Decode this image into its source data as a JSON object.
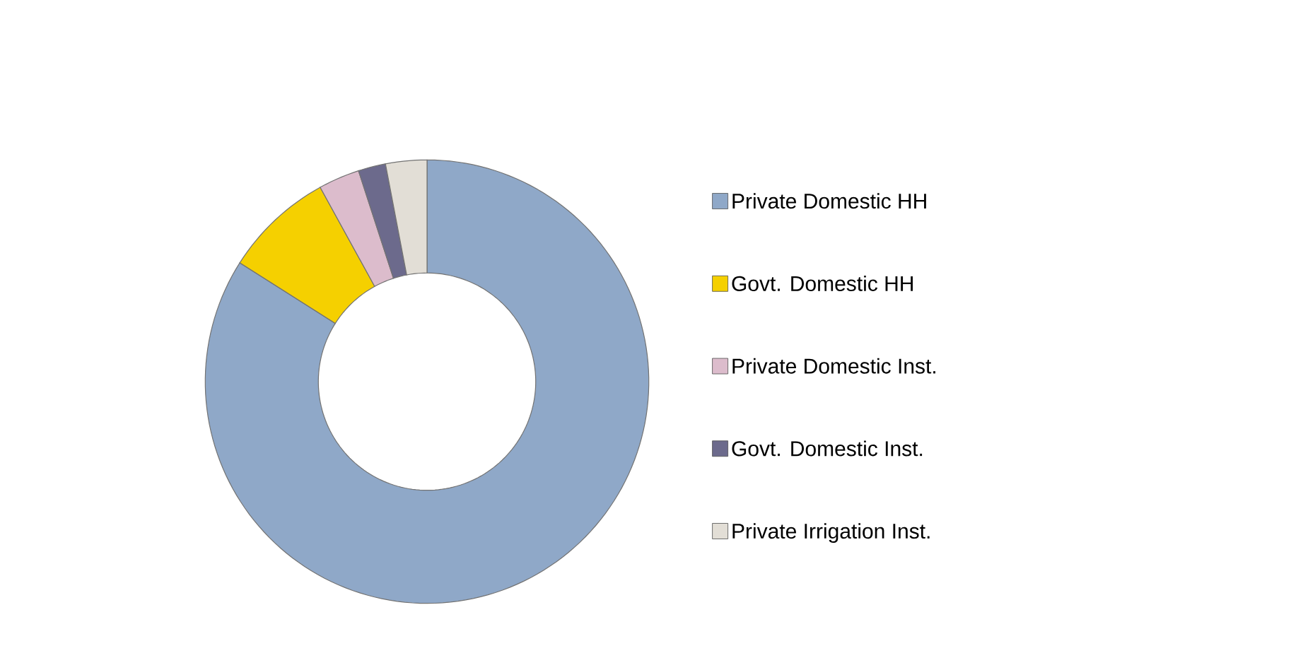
{
  "chart_data": {
    "type": "donut",
    "categories": [
      "Private Domestic HH",
      "Govt. Domestic HH",
      "Private Domestic Inst.",
      "Govt. Domestic Inst.",
      "Private Irrigation Inst."
    ],
    "values": [
      84,
      8,
      3,
      2,
      3
    ],
    "colors": [
      "#8fa8c8",
      "#f5d000",
      "#dcbccc",
      "#6c6a8c",
      "#e2ded6"
    ],
    "legend": "right"
  }
}
